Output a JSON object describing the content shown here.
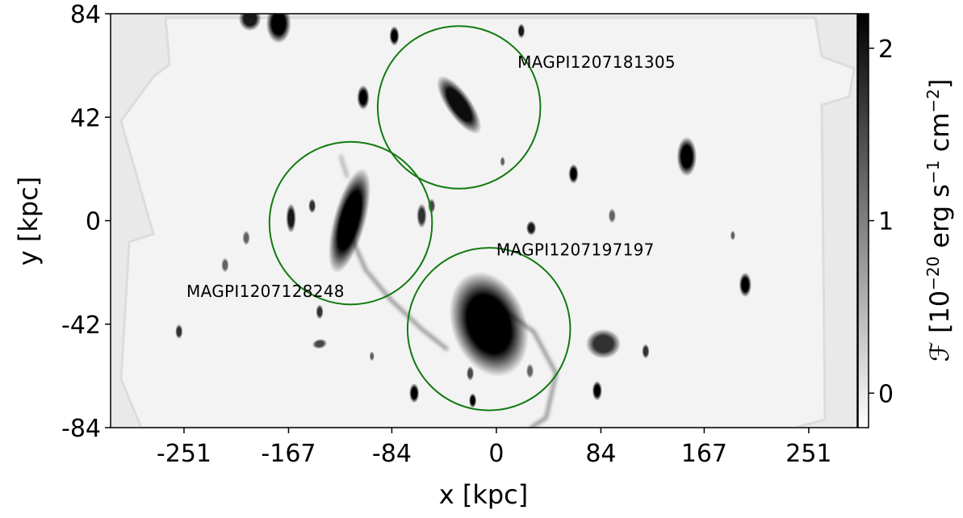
{
  "chart_data": {
    "type": "heatmap",
    "image": "grayscale surface-brightness map (inverted grey colormap)",
    "xlabel": "x [kpc]",
    "ylabel": "y [kpc]",
    "x_ticks": [
      -251,
      -167,
      -84,
      0,
      84,
      167,
      251
    ],
    "x_tick_labels": [
      "-251",
      "-167",
      "-84",
      "0",
      "84",
      "167",
      "251"
    ],
    "y_ticks": [
      84,
      42,
      0,
      -42,
      -84
    ],
    "y_tick_labels": [
      "84",
      "42",
      "0",
      "-42",
      "-84"
    ],
    "xlim": [
      -310,
      290
    ],
    "ylim": [
      -84,
      84
    ],
    "colorbar": {
      "label_parts": [
        "ℱ [10",
        "−20",
        " erg s",
        "−1",
        " cm",
        "−2",
        "]"
      ],
      "range": [
        -0.2,
        2.2
      ],
      "ticks": [
        0,
        1,
        2
      ],
      "tick_labels": [
        "0",
        "1",
        "2"
      ],
      "colormap": "gray_r"
    },
    "annotations": [
      {
        "text": "MAGPI1207181305",
        "x": 17,
        "y": 62
      },
      {
        "text": "MAGPI1207197197",
        "x": 0,
        "y": -14
      },
      {
        "text": "MAGPI1207128248",
        "x": -249,
        "y": -31
      }
    ],
    "circles": [
      {
        "x": -30,
        "y": 46,
        "r": 33,
        "color": "#117a11"
      },
      {
        "x": -117,
        "y": -1,
        "r": 33,
        "color": "#117a11"
      },
      {
        "x": -6,
        "y": -44,
        "r": 33,
        "color": "#117a11"
      }
    ],
    "galaxies": [
      {
        "x": -30,
        "y": 47,
        "rx": 10,
        "ry": 14,
        "angle": -35,
        "peak": 0.95
      },
      {
        "x": -118,
        "y": 0,
        "rx": 13,
        "ry": 22,
        "angle": 15,
        "peak": 1.0
      },
      {
        "x": -6,
        "y": -42,
        "rx": 30,
        "ry": 22,
        "angle": -20,
        "peak": 1.0
      },
      {
        "x": 86,
        "y": -50,
        "rx": 14,
        "ry": 6,
        "angle": 0,
        "peak": 0.8
      },
      {
        "x": -175,
        "y": 80,
        "rx": 10,
        "ry": 8,
        "angle": 0,
        "peak": 1.0
      },
      {
        "x": 153,
        "y": 26,
        "rx": 8,
        "ry": 8,
        "angle": 0,
        "peak": 1.0
      },
      {
        "x": -107,
        "y": 50,
        "rx": 5,
        "ry": 5,
        "angle": 0,
        "peak": 1.0
      },
      {
        "x": -82,
        "y": 75,
        "rx": 4,
        "ry": 4,
        "angle": 0,
        "peak": 1.0
      },
      {
        "x": 200,
        "y": -26,
        "rx": 5,
        "ry": 5,
        "angle": 0,
        "peak": 1.0
      },
      {
        "x": -165,
        "y": 1,
        "rx": 4,
        "ry": 6,
        "angle": 0,
        "peak": 0.9
      },
      {
        "x": 62,
        "y": 19,
        "rx": 4,
        "ry": 4,
        "angle": 0,
        "peak": 1.0
      },
      {
        "x": -66,
        "y": -70,
        "rx": 4,
        "ry": 4,
        "angle": 0,
        "peak": 1.0
      },
      {
        "x": -19,
        "y": -73,
        "rx": 3,
        "ry": 3,
        "angle": 0,
        "peak": 1.0
      },
      {
        "x": 81,
        "y": -69,
        "rx": 4,
        "ry": 4,
        "angle": 0,
        "peak": 1.0
      },
      {
        "x": 20,
        "y": 77,
        "rx": 3,
        "ry": 3,
        "angle": 0,
        "peak": 0.9
      },
      {
        "x": 28,
        "y": -3,
        "rx": 4,
        "ry": 3,
        "angle": 0,
        "peak": 0.9
      },
      {
        "x": -60,
        "y": 2,
        "rx": 4,
        "ry": 5,
        "angle": 0,
        "peak": 0.8
      },
      {
        "x": -52,
        "y": 6,
        "rx": 3,
        "ry": 3,
        "angle": 0,
        "peak": 0.7
      },
      {
        "x": -198,
        "y": 82,
        "rx": 9,
        "ry": 5,
        "angle": 0,
        "peak": 0.9
      },
      {
        "x": -255,
        "y": -45,
        "rx": 3,
        "ry": 3,
        "angle": 0,
        "peak": 0.8
      },
      {
        "x": -142,
        "y": -37,
        "rx": 3,
        "ry": 3,
        "angle": 0,
        "peak": 0.8
      },
      {
        "x": 120,
        "y": -53,
        "rx": 3,
        "ry": 3,
        "angle": 0,
        "peak": 0.8
      },
      {
        "x": -148,
        "y": 6,
        "rx": 3,
        "ry": 3,
        "angle": 0,
        "peak": 0.8
      },
      {
        "x": -218,
        "y": -18,
        "rx": 3,
        "ry": 3,
        "angle": 0,
        "peak": 0.6
      },
      {
        "x": -201,
        "y": -7,
        "rx": 3,
        "ry": 3,
        "angle": 0,
        "peak": 0.6
      },
      {
        "x": -142,
        "y": -50,
        "rx": 6,
        "ry": 2,
        "angle": -10,
        "peak": 0.7
      },
      {
        "x": -21,
        "y": -62,
        "rx": 3,
        "ry": 3,
        "angle": 0,
        "peak": 0.7
      },
      {
        "x": 27,
        "y": -61,
        "rx": 3,
        "ry": 3,
        "angle": 0,
        "peak": 0.6
      },
      {
        "x": 93,
        "y": 2,
        "rx": 3,
        "ry": 3,
        "angle": 0,
        "peak": 0.6
      },
      {
        "x": 190,
        "y": -6,
        "rx": 2,
        "ry": 2,
        "angle": 0,
        "peak": 0.6
      },
      {
        "x": -100,
        "y": -55,
        "rx": 2,
        "ry": 2,
        "angle": 0,
        "peak": 0.6
      },
      {
        "x": 5,
        "y": 24,
        "rx": 2,
        "ry": 2,
        "angle": 0,
        "peak": 0.6
      }
    ],
    "streams": [
      {
        "points": [
          [
            -118,
            -5
          ],
          [
            -105,
            -20
          ],
          [
            -85,
            -32
          ],
          [
            -60,
            -44
          ],
          [
            -40,
            -52
          ]
        ],
        "width": 2.5,
        "opacity": 0.45
      },
      {
        "points": [
          [
            5,
            -36
          ],
          [
            30,
            -45
          ],
          [
            48,
            -62
          ],
          [
            40,
            -80
          ],
          [
            28,
            -84
          ]
        ],
        "width": 2.5,
        "opacity": 0.45
      },
      {
        "points": [
          [
            -120,
            18
          ],
          [
            -125,
            26
          ]
        ],
        "width": 2.5,
        "opacity": 0.3
      }
    ]
  }
}
